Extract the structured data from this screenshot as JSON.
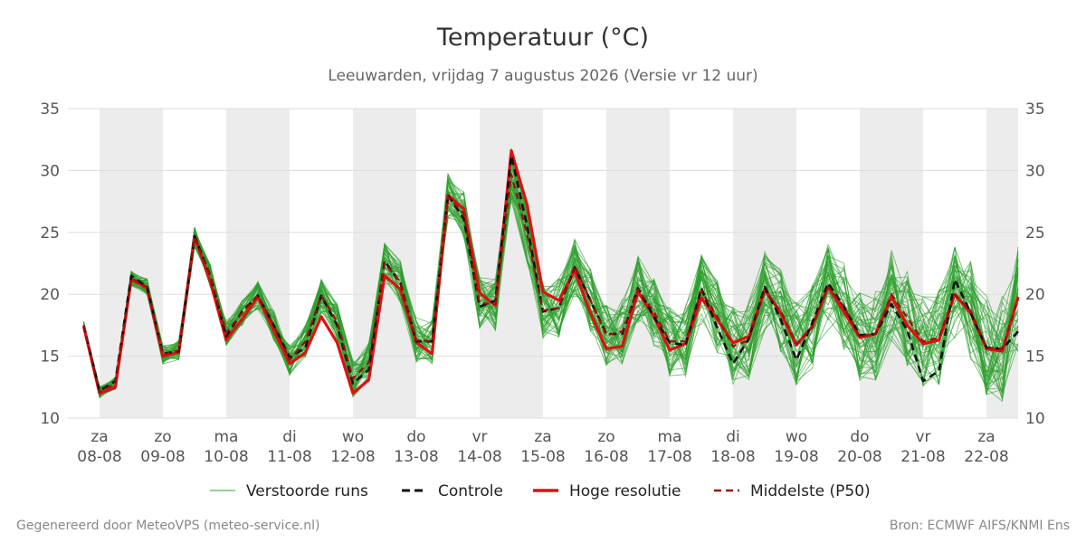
{
  "footer": {
    "left": "Gegenereerd door MeteoVPS (meteo-service.nl)",
    "right": "Bron: ECMWF AIFS/KNMI Ens"
  },
  "colors": {
    "ensemble": "#2ca02c",
    "control": "#111111",
    "highres": "#dd1111",
    "median": "#9b1010",
    "grid": "#dddddd",
    "band": "#ececec",
    "text": "#333333"
  },
  "chart_data": {
    "type": "line",
    "title": "Temperatuur (°C)",
    "subtitle": "Leeuwarden, vrijdag  7 augustus 2026 (Versie vr 12 uur)",
    "ylim": [
      10,
      35
    ],
    "yticks": [
      10,
      15,
      20,
      25,
      30,
      35
    ],
    "grid": true,
    "legend_position": "bottom",
    "x_start": "2026-08-07",
    "x_end": "2026-08-22",
    "day_labels": [
      {
        "date": "2026-08-08",
        "weekday": "za",
        "label": "08-08"
      },
      {
        "date": "2026-08-09",
        "weekday": "zo",
        "label": "09-08"
      },
      {
        "date": "2026-08-10",
        "weekday": "ma",
        "label": "10-08"
      },
      {
        "date": "2026-08-11",
        "weekday": "di",
        "label": "11-08"
      },
      {
        "date": "2026-08-12",
        "weekday": "wo",
        "label": "12-08"
      },
      {
        "date": "2026-08-13",
        "weekday": "do",
        "label": "13-08"
      },
      {
        "date": "2026-08-14",
        "weekday": "vr",
        "label": "14-08"
      },
      {
        "date": "2026-08-15",
        "weekday": "za",
        "label": "15-08"
      },
      {
        "date": "2026-08-16",
        "weekday": "zo",
        "label": "16-08"
      },
      {
        "date": "2026-08-17",
        "weekday": "ma",
        "label": "17-08"
      },
      {
        "date": "2026-08-18",
        "weekday": "di",
        "label": "18-08"
      },
      {
        "date": "2026-08-19",
        "weekday": "wo",
        "label": "19-08"
      },
      {
        "date": "2026-08-20",
        "weekday": "do",
        "label": "20-08"
      },
      {
        "date": "2026-08-21",
        "weekday": "vr",
        "label": "21-08"
      },
      {
        "date": "2026-08-22",
        "weekday": "za",
        "label": "22-08"
      }
    ],
    "night_bands": [
      [
        "2026-08-08",
        "2026-08-09"
      ],
      [
        "2026-08-10",
        "2026-08-11"
      ],
      [
        "2026-08-12",
        "2026-08-13"
      ],
      [
        "2026-08-14",
        "2026-08-15"
      ],
      [
        "2026-08-16",
        "2026-08-17"
      ],
      [
        "2026-08-18",
        "2026-08-19"
      ],
      [
        "2026-08-20",
        "2026-08-21"
      ],
      [
        "2026-08-22",
        "2026-08-22 12:00"
      ]
    ],
    "x": [
      "2026-08-07 18:00",
      "2026-08-08 00:00",
      "2026-08-08 06:00",
      "2026-08-08 12:00",
      "2026-08-08 18:00",
      "2026-08-09 00:00",
      "2026-08-09 06:00",
      "2026-08-09 12:00",
      "2026-08-09 18:00",
      "2026-08-10 00:00",
      "2026-08-10 06:00",
      "2026-08-10 12:00",
      "2026-08-10 18:00",
      "2026-08-11 00:00",
      "2026-08-11 06:00",
      "2026-08-11 12:00",
      "2026-08-11 18:00",
      "2026-08-12 00:00",
      "2026-08-12 06:00",
      "2026-08-12 12:00",
      "2026-08-12 18:00",
      "2026-08-13 00:00",
      "2026-08-13 06:00",
      "2026-08-13 12:00",
      "2026-08-13 18:00",
      "2026-08-14 00:00",
      "2026-08-14 06:00",
      "2026-08-14 12:00",
      "2026-08-14 18:00",
      "2026-08-15 00:00",
      "2026-08-15 06:00",
      "2026-08-15 12:00",
      "2026-08-15 18:00",
      "2026-08-16 00:00",
      "2026-08-16 06:00",
      "2026-08-16 12:00",
      "2026-08-16 18:00",
      "2026-08-17 00:00",
      "2026-08-17 06:00",
      "2026-08-17 12:00",
      "2026-08-17 18:00",
      "2026-08-18 00:00",
      "2026-08-18 06:00",
      "2026-08-18 12:00",
      "2026-08-18 18:00",
      "2026-08-19 00:00",
      "2026-08-19 06:00",
      "2026-08-19 12:00",
      "2026-08-19 18:00",
      "2026-08-20 00:00",
      "2026-08-20 06:00",
      "2026-08-20 12:00",
      "2026-08-20 18:00",
      "2026-08-21 00:00",
      "2026-08-21 06:00",
      "2026-08-21 12:00",
      "2026-08-21 18:00",
      "2026-08-22 00:00",
      "2026-08-22 06:00",
      "2026-08-22 12:00"
    ],
    "series": [
      {
        "name": "Controle",
        "style": "dashed",
        "values": [
          17.5,
          12.2,
          13.0,
          21.5,
          20.6,
          15.2,
          15.4,
          24.7,
          21.5,
          16.6,
          18.6,
          19.9,
          17.5,
          14.9,
          15.7,
          19.9,
          17.5,
          12.8,
          13.9,
          22.7,
          20.9,
          16.2,
          16.2,
          28.0,
          26.1,
          19.0,
          19.5,
          31.2,
          25.5,
          18.6,
          18.9,
          22.2,
          19.5,
          16.8,
          16.8,
          20.5,
          18.2,
          16.1,
          15.9,
          20.5,
          17.3,
          14.4,
          16.4,
          20.6,
          18.0,
          14.7,
          17.7,
          20.9,
          19.0,
          16.7,
          16.8,
          19.2,
          17.1,
          13.0,
          13.8,
          21.2,
          18.5,
          15.7,
          15.6,
          17.0
        ]
      },
      {
        "name": "Hoge resolutie",
        "style": "solid",
        "values": [
          17.4,
          12.0,
          12.5,
          21.2,
          20.5,
          15.0,
          15.3,
          24.7,
          21.0,
          16.3,
          18.0,
          19.8,
          17.1,
          14.4,
          15.3,
          18.2,
          16.1,
          12.0,
          13.1,
          21.5,
          20.4,
          16.1,
          15.2,
          28.0,
          26.9,
          20.1,
          19.1,
          31.6,
          27.2,
          20.2,
          19.5,
          21.9,
          18.5,
          15.6,
          15.8,
          20.2,
          18.2,
          15.5,
          16.0,
          19.7,
          18.0,
          16.1,
          16.6,
          20.4,
          18.5,
          15.9,
          17.4,
          20.6,
          18.6,
          16.5,
          16.8,
          19.8,
          17.5,
          16.0,
          16.3,
          20.0,
          18.5,
          15.6,
          15.4,
          19.8
        ]
      },
      {
        "name": "Middelste (P50)",
        "style": "dashed",
        "values": [
          17.5,
          12.1,
          12.8,
          21.3,
          20.6,
          15.1,
          15.5,
          24.6,
          21.5,
          16.9,
          18.5,
          19.9,
          17.5,
          14.7,
          16.2,
          19.9,
          17.8,
          13.2,
          14.5,
          22.5,
          21.0,
          16.3,
          16.2,
          27.9,
          26.5,
          19.3,
          19.2,
          29.7,
          24.8,
          18.7,
          18.9,
          22.3,
          19.5,
          16.7,
          17.0,
          20.4,
          18.6,
          16.2,
          16.2,
          20.3,
          18.2,
          15.8,
          16.3,
          20.2,
          18.7,
          16.0,
          17.3,
          20.6,
          19.0,
          16.6,
          16.8,
          20.0,
          18.1,
          16.2,
          16.5,
          20.0,
          18.7,
          15.7,
          15.6,
          19.6
        ]
      }
    ]
  },
  "legend": [
    {
      "label": "Verstoorde runs",
      "kind": "ensemble"
    },
    {
      "label": "Controle",
      "kind": "control"
    },
    {
      "label": "Hoge resolutie",
      "kind": "highres"
    },
    {
      "label": "Middelste (P50)",
      "kind": "median"
    }
  ]
}
